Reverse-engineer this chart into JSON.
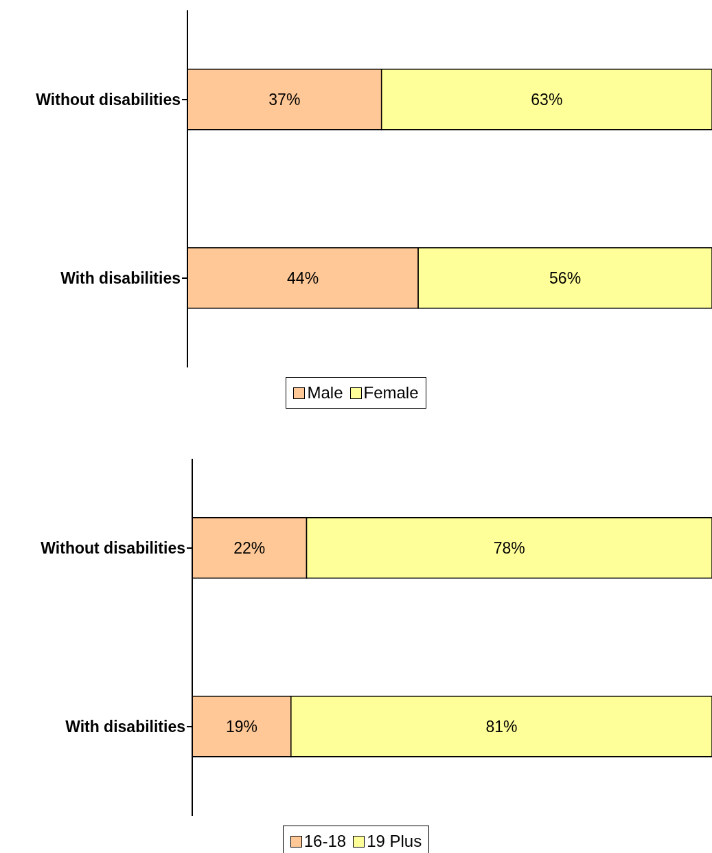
{
  "chart_data": [
    {
      "type": "bar",
      "orientation": "horizontal",
      "stacked": true,
      "categories": [
        "Without disabilities",
        "With disabilities"
      ],
      "legend": "bottom",
      "tick_labels": "y",
      "series": [
        {
          "name": "Male",
          "color": "#ffc896",
          "values": [
            37,
            44
          ],
          "value_labels": [
            "37%",
            "44%"
          ]
        },
        {
          "name": "Female",
          "color": "#ffff99",
          "values": [
            63,
            56
          ],
          "value_labels": [
            "63%",
            "56%"
          ]
        }
      ]
    },
    {
      "type": "bar",
      "orientation": "horizontal",
      "stacked": true,
      "categories": [
        "Without disabilities",
        "With disabilities"
      ],
      "legend": "bottom",
      "tick_labels": "y",
      "series": [
        {
          "name": "16-18",
          "color": "#ffc896",
          "values": [
            22,
            19
          ],
          "value_labels": [
            "22%",
            "19%"
          ]
        },
        {
          "name": "19 Plus",
          "color": "#ffff99",
          "values": [
            78,
            81
          ],
          "value_labels": [
            "78%",
            "81%"
          ]
        }
      ]
    }
  ]
}
